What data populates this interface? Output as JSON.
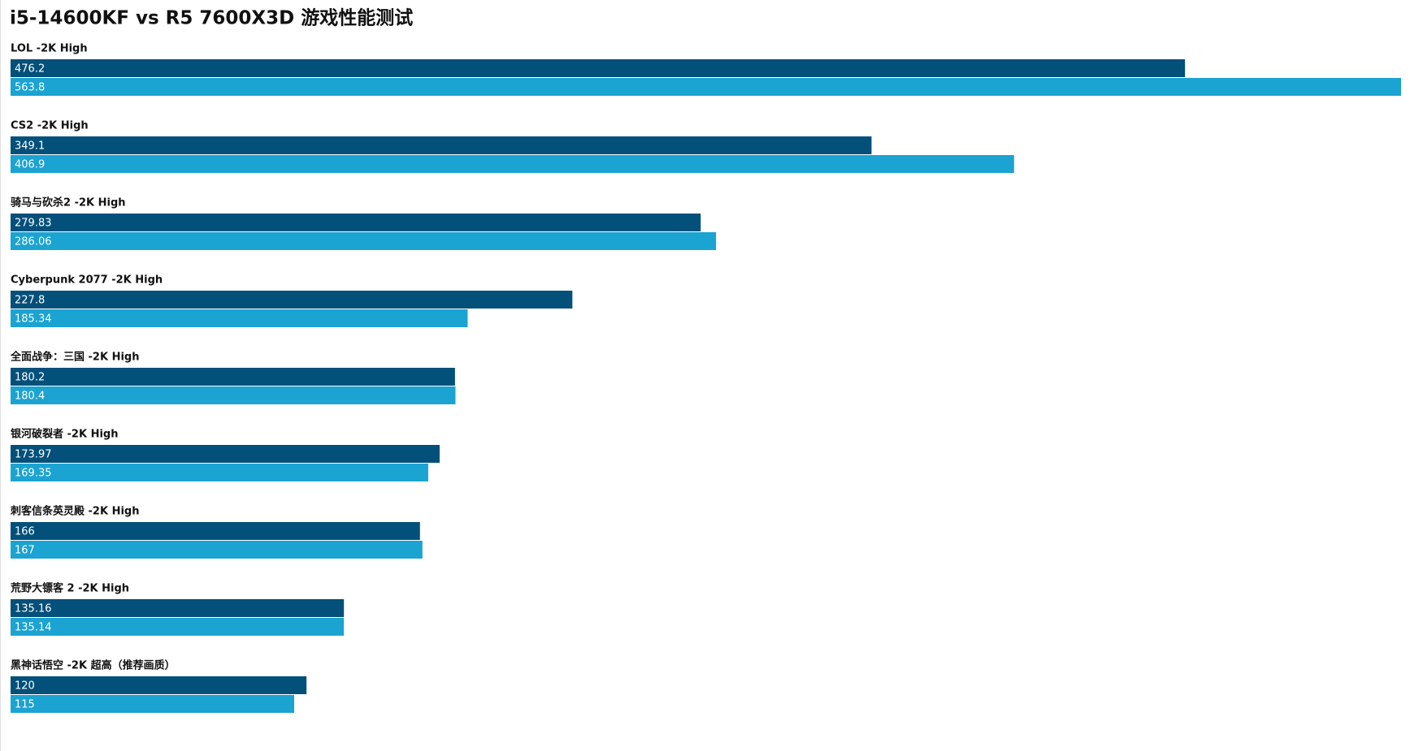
{
  "chart_data": {
    "type": "bar",
    "orientation": "horizontal",
    "title": "i5-14600KF vs R5 7600X3D 游戏性能测试",
    "categories": [
      "LOL -2K High",
      "CS2 -2K High",
      "骑马与砍杀2 -2K High",
      "Cyberpunk 2077 -2K High",
      "全面战争：三国 -2K High",
      "银河破裂者 -2K High",
      "刺客信条英灵殿 -2K High",
      "荒野大镖客 2 -2K High",
      "黑神话悟空 -2K 超高（推荐画质）"
    ],
    "series": [
      {
        "color": "#03507a",
        "values": [
          476.2,
          349.1,
          279.83,
          227.8,
          180.2,
          173.97,
          166,
          135.16,
          120
        ]
      },
      {
        "color": "#1ba3d1",
        "values": [
          563.8,
          406.9,
          286.06,
          185.34,
          180.4,
          169.35,
          167,
          135.14,
          115
        ]
      }
    ]
  }
}
